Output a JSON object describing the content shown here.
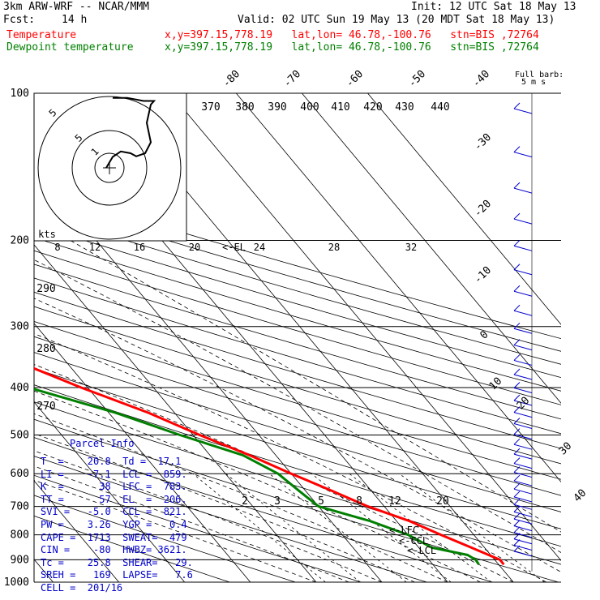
{
  "header": {
    "model": "3km ARW-WRF -- NCAR/MMM",
    "init": "Init: 12 UTC Sat 18 May 13",
    "fcst_label": "Fcst:",
    "fcst_value": "14 h",
    "valid": "Valid: 02 UTC Sun 19 May 13 (20 MDT Sat 18 May 13)",
    "temp_label": "Temperature",
    "dew_label": "Dewpoint temperature",
    "location": "x,y=397.15,778.19   lat,lon= 46.78,-100.76   stn=BIS ,72764"
  },
  "colors": {
    "temp": "#ff0000",
    "dew": "#008000",
    "parcel_text": "#0000cc",
    "grid": "#000000"
  },
  "chart_data": {
    "type": "line",
    "title": "Skew-T log-P sounding",
    "pressure_ticks": [
      "100",
      "200",
      "300",
      "400",
      "500",
      "600",
      "700",
      "800",
      "900",
      "1000"
    ],
    "pressure_values": [
      100,
      200,
      300,
      400,
      500,
      600,
      700,
      800,
      900,
      1000
    ],
    "isotherm_labels_top": [
      "-80",
      "-70",
      "-60",
      "-50",
      "-40"
    ],
    "isotherm_labels_right": [
      "-30",
      "-20",
      "-10",
      "0",
      "10",
      "20",
      "30",
      "40"
    ],
    "theta_labels": [
      "370",
      "380",
      "390",
      "400",
      "410",
      "420",
      "430",
      "440"
    ],
    "theta_labels_left": [
      "290",
      "280",
      "270"
    ],
    "mixing_ratio_labels": [
      "2",
      "3",
      "5",
      "8",
      "12",
      "20"
    ],
    "hodograph": {
      "speed_unit": "kts",
      "speed_labels": [
        "8",
        "12",
        "16",
        "20",
        "24",
        "28",
        "32"
      ],
      "ring_labels": [
        "5",
        "5",
        "1"
      ]
    },
    "wind_barb_legend": "Full barb:",
    "wind_barb_value": "5 m s",
    "level_labels": [
      "<-EL",
      "<-LFC",
      "<-CCL",
      "<-LCL"
    ],
    "series": [
      {
        "name": "Temperature",
        "color": "#ff0000",
        "points": [
          [
            100,
            -56
          ],
          [
            150,
            -57
          ],
          [
            175,
            -60
          ],
          [
            200,
            -62
          ],
          [
            225,
            -54
          ],
          [
            250,
            -46
          ],
          [
            300,
            -37
          ],
          [
            350,
            -28
          ],
          [
            400,
            -21
          ],
          [
            450,
            -14
          ],
          [
            500,
            -9
          ],
          [
            550,
            -4
          ],
          [
            600,
            0
          ],
          [
            650,
            4
          ],
          [
            700,
            7.5
          ],
          [
            750,
            12
          ],
          [
            800,
            15
          ],
          [
            850,
            18
          ],
          [
            900,
            20.8
          ],
          [
            920,
            20.8
          ]
        ]
      },
      {
        "name": "Dewpoint temperature",
        "color": "#008000",
        "points": [
          [
            100,
            -66
          ],
          [
            150,
            -77
          ],
          [
            175,
            -84
          ],
          [
            190,
            -80
          ],
          [
            215,
            -88
          ],
          [
            250,
            -76
          ],
          [
            300,
            -58
          ],
          [
            350,
            -42
          ],
          [
            400,
            -29
          ],
          [
            450,
            -19
          ],
          [
            500,
            -12
          ],
          [
            550,
            -5
          ],
          [
            600,
            -2
          ],
          [
            650,
            -1
          ],
          [
            700,
            0
          ],
          [
            750,
            6
          ],
          [
            800,
            10
          ],
          [
            850,
            12
          ],
          [
            880,
            16.5
          ],
          [
            900,
            17.1
          ],
          [
            920,
            17
          ]
        ]
      }
    ],
    "hodograph_points": [
      [
        -0.2,
        0
      ],
      [
        0.2,
        0.9
      ],
      [
        0.7,
        1.35
      ],
      [
        1.3,
        1.2
      ],
      [
        1.65,
        0.95
      ],
      [
        2.2,
        1.2
      ],
      [
        2.55,
        2.1
      ],
      [
        2.3,
        3.7
      ],
      [
        2.55,
        5.2
      ],
      [
        2.75,
        5.5
      ],
      [
        2.1,
        5.5
      ],
      [
        1.1,
        5.75
      ],
      [
        0.2,
        5.75
      ]
    ]
  },
  "parcel_info": {
    "title": "Parcel Info",
    "rows": [
      "T  =    20.8  Td =  17.1",
      "LI =    -7.1  LCL =  859.",
      "K  =      38  LFC =  783.",
      "TT =      57  EL  =  206.",
      "SVI =   -5.0  CCL =  821.",
      "PW =    3.26  YGP =   0.4",
      "CAPE =  1713  SWEAT=  479",
      "CIN =    -80  HWBZ= 3621.",
      "Tc =    25.8  SHEAR=   29.",
      "SREH =   169  LAPSE=   7.6",
      "CELL =  201/16"
    ]
  }
}
